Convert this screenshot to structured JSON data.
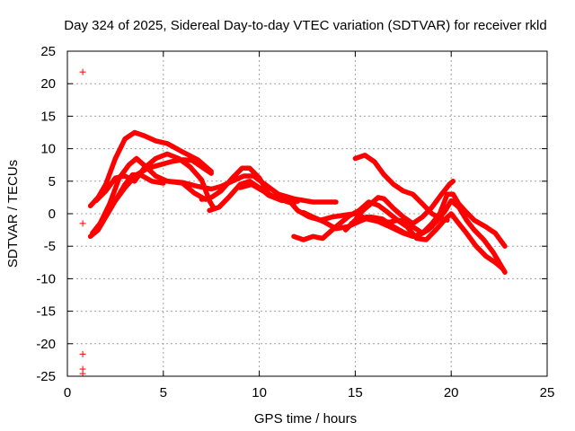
{
  "colors": {
    "series": "#ff0000",
    "grid": "#a0a0a0",
    "axis": "#000000",
    "background": "#ffffff"
  },
  "chart_data": {
    "type": "scatter",
    "title": "Day 324 of 2025, Sidereal Day-to-day VTEC variation (SDTVAR) for receiver rkld",
    "xlabel": "GPS time / hours",
    "ylabel": "SDTVAR / TECUs",
    "xlim": [
      0,
      25
    ],
    "ylim": [
      -25,
      25
    ],
    "xticks": [
      0,
      5,
      10,
      15,
      20,
      25
    ],
    "yticks": [
      -25,
      -20,
      -15,
      -10,
      -5,
      0,
      5,
      10,
      15,
      20,
      25
    ],
    "grid": true,
    "marker": "+",
    "outlier_points": [
      {
        "x": 0.8,
        "y": 21.8
      },
      {
        "x": 0.8,
        "y": -1.5
      },
      {
        "x": 0.8,
        "y": -21.6
      },
      {
        "x": 0.8,
        "y": -23.9
      },
      {
        "x": 0.8,
        "y": -24.6
      }
    ],
    "tracks": [
      {
        "name": "track-1",
        "points": [
          [
            1.2,
            1.2
          ],
          [
            1.6,
            2.5
          ],
          [
            2.0,
            4.5
          ],
          [
            2.5,
            8.5
          ],
          [
            3.0,
            11.5
          ],
          [
            3.5,
            12.5
          ],
          [
            4.0,
            12.0
          ],
          [
            4.6,
            11.2
          ],
          [
            5.2,
            10.8
          ],
          [
            6.0,
            9.5
          ],
          [
            6.8,
            8.3
          ],
          [
            7.5,
            6.5
          ]
        ]
      },
      {
        "name": "track-2",
        "points": [
          [
            1.3,
            -3.0
          ],
          [
            1.7,
            -1.5
          ],
          [
            2.2,
            1.5
          ],
          [
            2.7,
            5.5
          ],
          [
            3.2,
            7.5
          ],
          [
            3.6,
            8.5
          ],
          [
            4.1,
            7.2
          ],
          [
            4.6,
            5.8
          ],
          [
            5.2,
            5.0
          ],
          [
            6.0,
            4.7
          ],
          [
            6.6,
            3.2
          ],
          [
            7.2,
            2.2
          ]
        ]
      },
      {
        "name": "track-3",
        "points": [
          [
            1.2,
            -3.5
          ],
          [
            1.6,
            -2.5
          ],
          [
            2.0,
            -0.5
          ],
          [
            2.5,
            2.0
          ],
          [
            3.0,
            4.5
          ],
          [
            3.4,
            6.0
          ],
          [
            3.8,
            6.0
          ],
          [
            4.4,
            5.0
          ],
          [
            5.0,
            4.7
          ]
        ]
      },
      {
        "name": "track-4",
        "points": [
          [
            1.5,
            2.0
          ],
          [
            2.0,
            3.5
          ],
          [
            2.5,
            5.5
          ],
          [
            3.0,
            5.8
          ],
          [
            3.5,
            5.0
          ],
          [
            4.0,
            7.0
          ],
          [
            4.6,
            8.5
          ],
          [
            5.2,
            9.2
          ],
          [
            5.8,
            8.5
          ],
          [
            6.4,
            7.2
          ],
          [
            7.0,
            5.2
          ],
          [
            7.4,
            2.0
          ],
          [
            7.6,
            1.0
          ]
        ]
      },
      {
        "name": "track-5",
        "points": [
          [
            2.5,
            2.0
          ],
          [
            3.0,
            4.0
          ],
          [
            3.6,
            6.0
          ],
          [
            4.2,
            7.0
          ],
          [
            4.8,
            7.5
          ],
          [
            5.4,
            8.0
          ],
          [
            6.0,
            8.3
          ],
          [
            6.5,
            8.2
          ],
          [
            7.0,
            7.2
          ],
          [
            7.5,
            6.2
          ]
        ]
      },
      {
        "name": "track-6",
        "points": [
          [
            5.2,
            5.0
          ],
          [
            6.0,
            4.8
          ],
          [
            6.8,
            4.2
          ],
          [
            7.5,
            3.8
          ],
          [
            8.0,
            4.2
          ],
          [
            8.6,
            5.0
          ],
          [
            9.2,
            5.8
          ],
          [
            9.7,
            5.8
          ],
          [
            10.3,
            4.5
          ],
          [
            11.0,
            3.0
          ],
          [
            11.8,
            2.3
          ],
          [
            12.8,
            1.8
          ],
          [
            13.5,
            1.8
          ],
          [
            14.0,
            1.8
          ]
        ]
      },
      {
        "name": "track-7",
        "points": [
          [
            7.4,
            0.5
          ],
          [
            7.9,
            1.0
          ],
          [
            8.4,
            2.5
          ],
          [
            9.0,
            4.5
          ],
          [
            9.5,
            5.0
          ],
          [
            10.0,
            4.0
          ],
          [
            10.5,
            2.8
          ],
          [
            11.2,
            2.0
          ]
        ]
      },
      {
        "name": "track-8",
        "points": [
          [
            7.0,
            2.2
          ],
          [
            7.5,
            2.5
          ],
          [
            8.0,
            3.5
          ],
          [
            8.6,
            5.5
          ],
          [
            9.1,
            7.0
          ],
          [
            9.5,
            7.0
          ],
          [
            10.0,
            5.5
          ],
          [
            10.5,
            3.0
          ],
          [
            11.0,
            2.3
          ],
          [
            11.8,
            1.5
          ]
        ]
      },
      {
        "name": "track-9",
        "points": [
          [
            9.0,
            4.0
          ],
          [
            9.6,
            4.5
          ],
          [
            10.2,
            3.5
          ],
          [
            10.8,
            2.5
          ],
          [
            11.5,
            2.2
          ],
          [
            12.0,
            1.9
          ]
        ]
      },
      {
        "name": "track-10",
        "points": [
          [
            11.5,
            2.2
          ],
          [
            12.0,
            0.5
          ],
          [
            12.6,
            -0.5
          ],
          [
            13.2,
            -1.0
          ],
          [
            13.8,
            -0.5
          ],
          [
            14.5,
            -0.2
          ],
          [
            15.0,
            0.0
          ],
          [
            15.6,
            -0.8
          ],
          [
            16.2,
            -1.2
          ],
          [
            16.8,
            -2.0
          ],
          [
            17.5,
            -3.0
          ],
          [
            18.0,
            -3.5
          ],
          [
            18.5,
            -3.0
          ],
          [
            19.0,
            -1.5
          ],
          [
            19.4,
            0.0
          ],
          [
            19.8,
            3.0
          ],
          [
            20.1,
            3.0
          ],
          [
            20.4,
            1.5
          ],
          [
            20.8,
            0.2
          ],
          [
            21.2,
            -1.0
          ],
          [
            21.8,
            -2.0
          ],
          [
            22.3,
            -3.0
          ],
          [
            22.8,
            -5.0
          ]
        ]
      },
      {
        "name": "track-11",
        "points": [
          [
            12.3,
            0.2
          ],
          [
            12.8,
            -0.5
          ],
          [
            13.4,
            -1.3
          ],
          [
            14.0,
            -2.3
          ],
          [
            14.6,
            -2.0
          ],
          [
            15.2,
            -1.2
          ],
          [
            15.8,
            -0.5
          ],
          [
            16.4,
            -0.8
          ],
          [
            17.0,
            -2.0
          ],
          [
            17.6,
            -3.0
          ],
          [
            18.2,
            -3.5
          ],
          [
            18.8,
            -2.5
          ],
          [
            19.3,
            -1.0
          ],
          [
            19.7,
            0.5
          ],
          [
            20.0,
            2.0
          ],
          [
            20.4,
            1.0
          ],
          [
            20.8,
            -1.0
          ],
          [
            21.2,
            -2.5
          ],
          [
            21.7,
            -4.0
          ],
          [
            22.2,
            -6.0
          ],
          [
            22.6,
            -8.0
          ],
          [
            22.8,
            -9.0
          ]
        ]
      },
      {
        "name": "track-12",
        "points": [
          [
            11.8,
            -3.5
          ],
          [
            12.3,
            -4.0
          ],
          [
            12.8,
            -3.5
          ],
          [
            13.3,
            -3.8
          ],
          [
            13.8,
            -2.5
          ],
          [
            14.2,
            -1.5
          ],
          [
            14.7,
            -0.3
          ],
          [
            15.2,
            0.5
          ],
          [
            15.7,
            1.8
          ],
          [
            16.2,
            1.3
          ],
          [
            16.7,
            0.2
          ],
          [
            17.2,
            -1.0
          ],
          [
            17.7,
            -2.0
          ],
          [
            18.2,
            -3.8
          ],
          [
            18.7,
            -4.0
          ],
          [
            19.2,
            -2.5
          ],
          [
            19.7,
            -0.8
          ],
          [
            20.0,
            0.0
          ],
          [
            20.4,
            -1.5
          ],
          [
            20.8,
            -3.0
          ],
          [
            21.3,
            -5.0
          ],
          [
            21.8,
            -6.5
          ],
          [
            22.3,
            -7.5
          ],
          [
            22.7,
            -8.5
          ]
        ]
      },
      {
        "name": "track-13",
        "points": [
          [
            14.5,
            -2.5
          ],
          [
            15.0,
            -1.0
          ],
          [
            15.4,
            0.5
          ],
          [
            15.8,
            1.5
          ],
          [
            16.2,
            2.5
          ],
          [
            16.5,
            2.3
          ],
          [
            17.0,
            0.8
          ],
          [
            17.5,
            -0.5
          ],
          [
            18.0,
            -1.5
          ],
          [
            18.5,
            -0.5
          ],
          [
            19.0,
            1.0
          ],
          [
            19.5,
            3.0
          ],
          [
            19.9,
            4.5
          ],
          [
            20.1,
            5.0
          ]
        ]
      },
      {
        "name": "track-14",
        "points": [
          [
            15.0,
            8.5
          ],
          [
            15.5,
            9.0
          ],
          [
            16.0,
            8.0
          ],
          [
            16.5,
            6.0
          ],
          [
            17.0,
            4.5
          ],
          [
            17.5,
            3.5
          ],
          [
            18.0,
            3.0
          ],
          [
            18.5,
            1.5
          ],
          [
            19.0,
            0.0
          ],
          [
            19.5,
            -0.8
          ],
          [
            19.8,
            -1.0
          ]
        ]
      },
      {
        "name": "track-15",
        "points": [
          [
            14.8,
            -1.5
          ],
          [
            15.2,
            -1.0
          ],
          [
            15.6,
            -0.5
          ],
          [
            16.0,
            -0.8
          ],
          [
            16.4,
            -1.2
          ],
          [
            16.8,
            -1.3
          ],
          [
            17.2,
            -1.0
          ],
          [
            17.6,
            -1.2
          ],
          [
            18.0,
            -2.0
          ],
          [
            18.5,
            -3.0
          ],
          [
            19.0,
            -2.0
          ]
        ]
      }
    ]
  }
}
